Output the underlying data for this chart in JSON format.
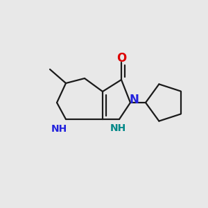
{
  "background_color": "#e8e8e8",
  "bond_color": "#1a1a1a",
  "bond_lw": 1.6,
  "atom_colors": {
    "N_blue": "#2222dd",
    "O_red": "#dd0000",
    "NH_teal": "#008888"
  },
  "font_size_atom": 10,
  "font_size_h": 8,
  "fig_size": [
    3.0,
    3.0
  ],
  "dpi": 100
}
